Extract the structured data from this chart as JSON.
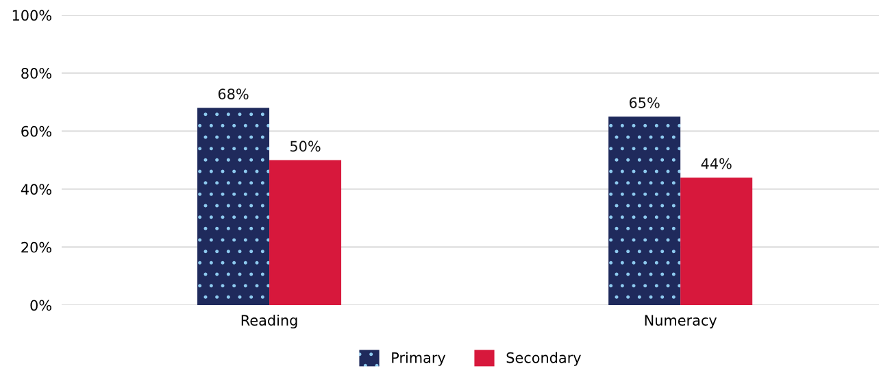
{
  "chart_data": {
    "type": "bar",
    "categories": [
      "Reading",
      "Numeracy"
    ],
    "series": [
      {
        "name": "Primary",
        "color": "#1f2a5c",
        "values": [
          68,
          65
        ],
        "value_labels": [
          "68%",
          "65%"
        ]
      },
      {
        "name": "Secondary",
        "color": "#d7183c",
        "values": [
          50,
          44
        ],
        "value_labels": [
          "50%",
          "44%"
        ]
      }
    ],
    "ylim": [
      0,
      100
    ],
    "yticks": [
      {
        "value": 0,
        "label": "0%"
      },
      {
        "value": 20,
        "label": "20%"
      },
      {
        "value": 40,
        "label": "40%"
      },
      {
        "value": 60,
        "label": "60%"
      },
      {
        "value": 80,
        "label": "80%"
      },
      {
        "value": 100,
        "label": "100%"
      }
    ],
    "grid": "y",
    "legend": "bottom"
  }
}
